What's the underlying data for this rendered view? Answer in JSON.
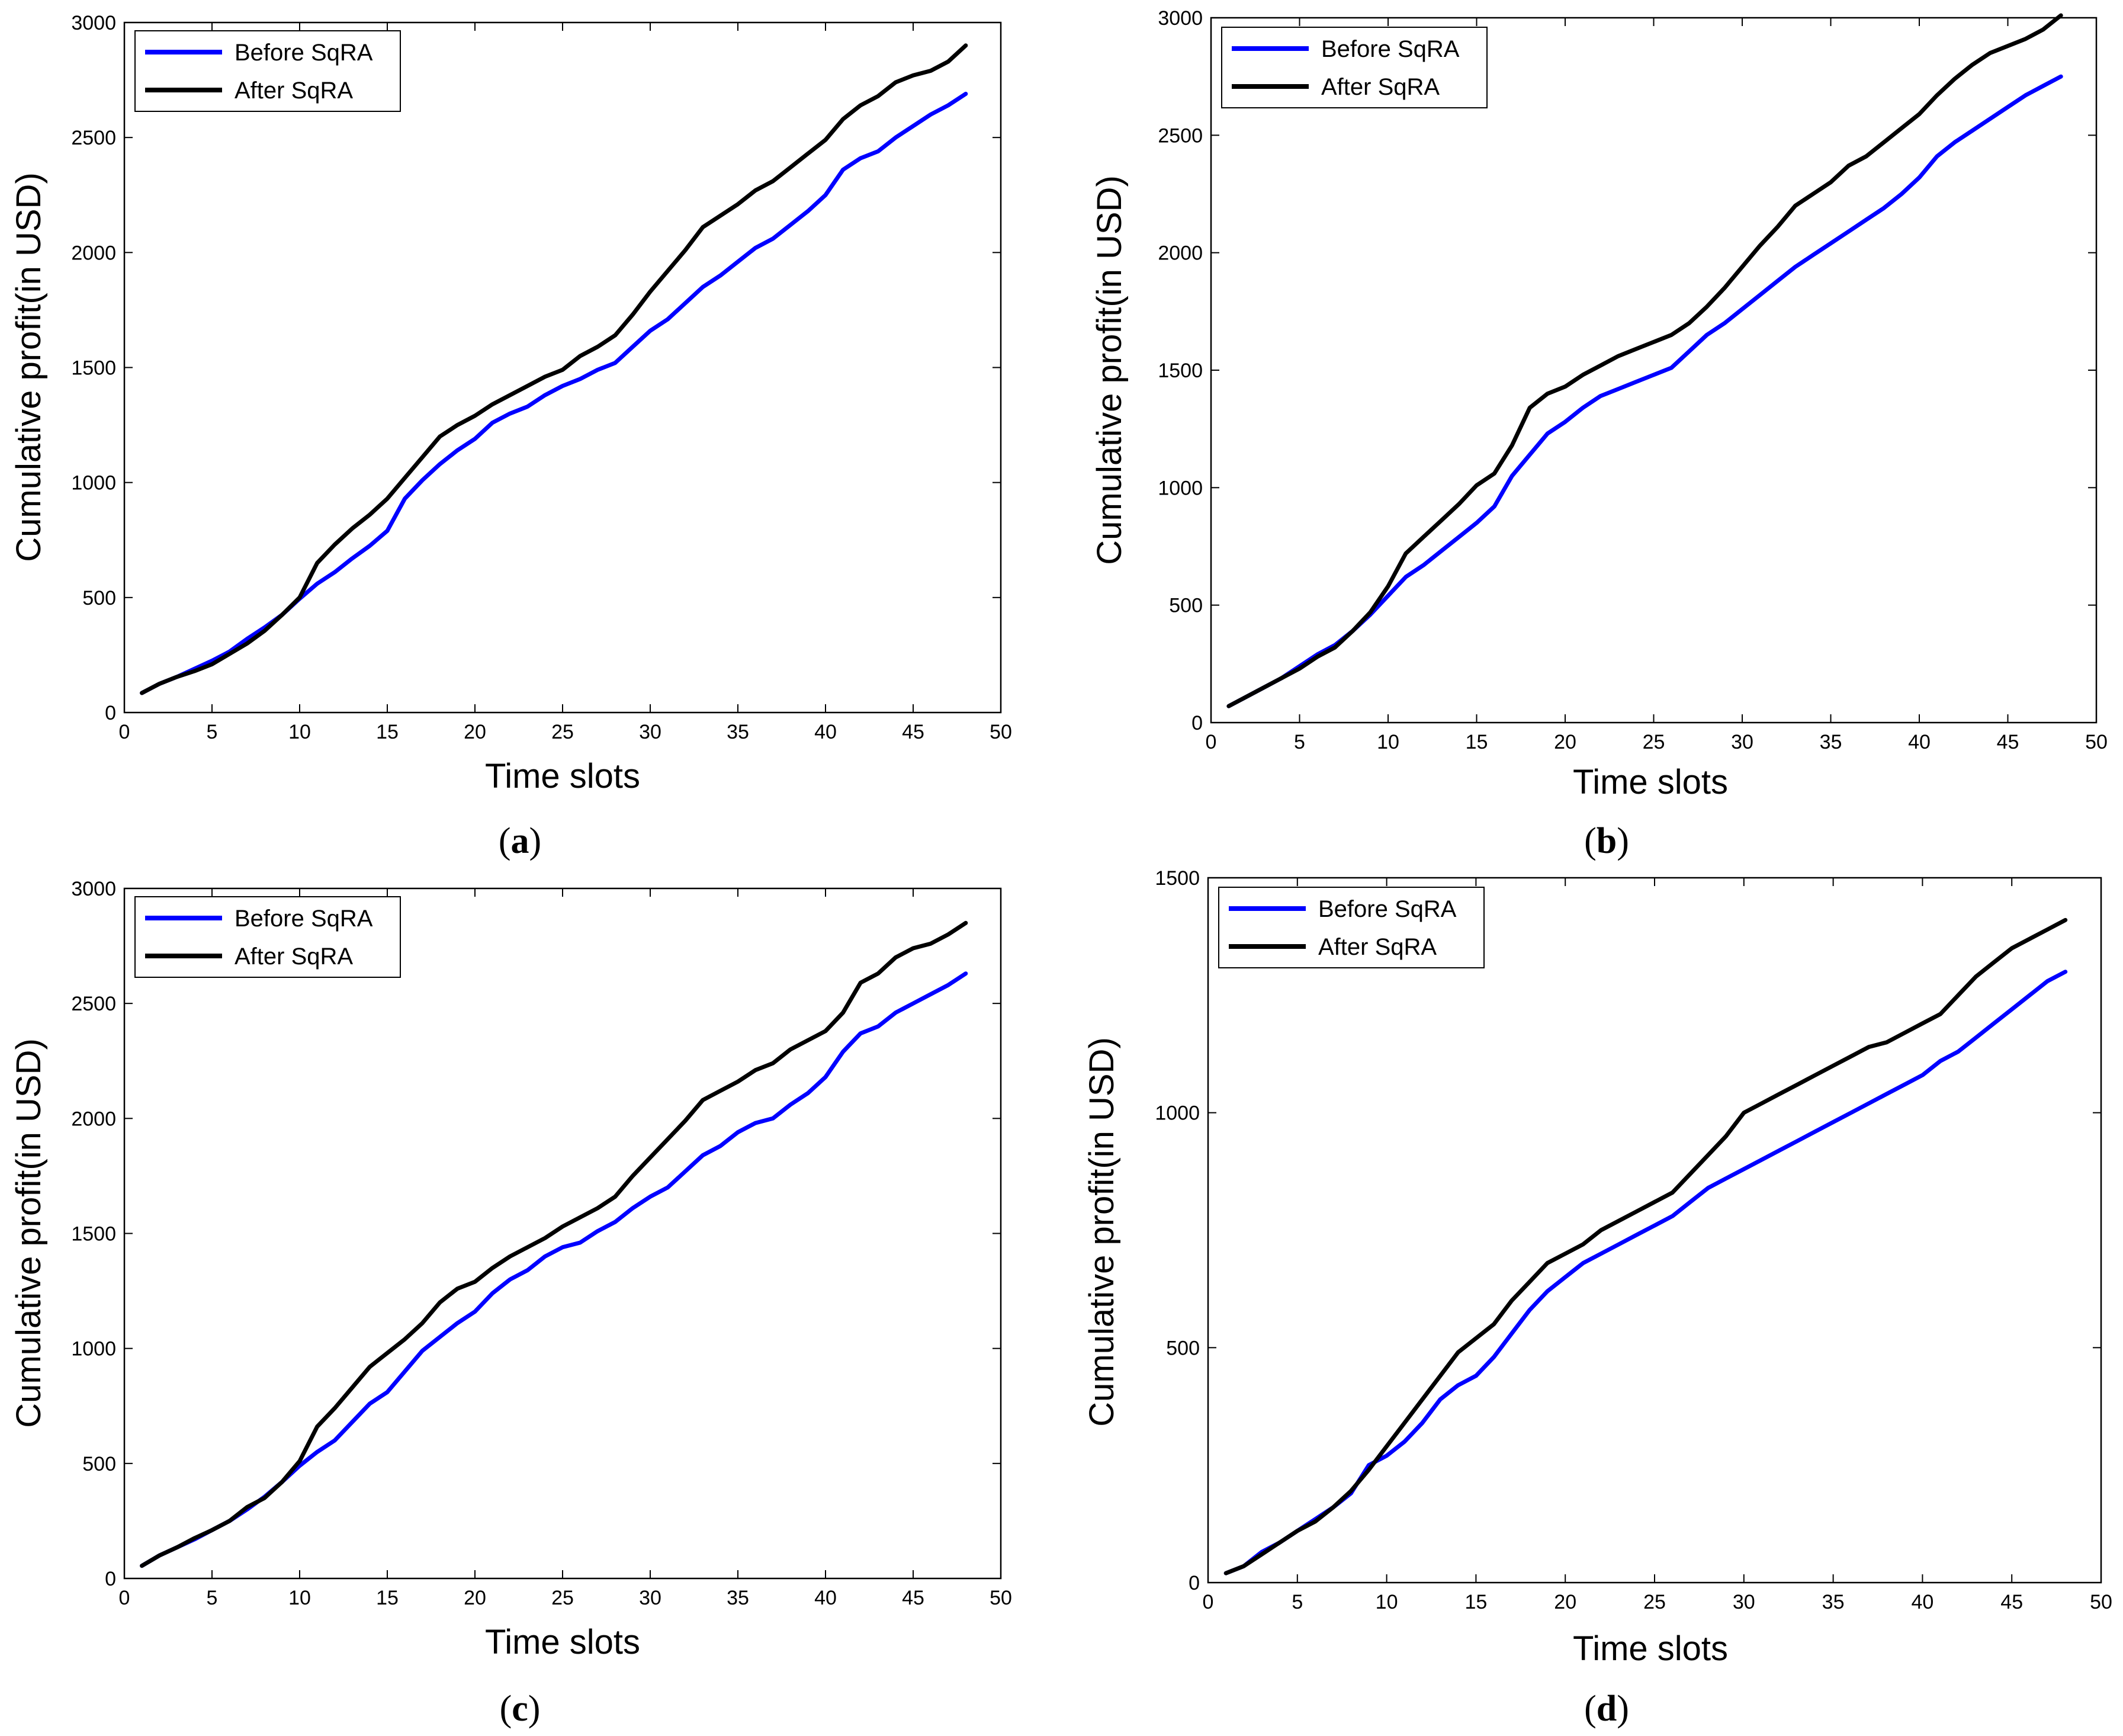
{
  "chart_data": [
    {
      "type": "line",
      "panel": "a",
      "caption_prefix": "(",
      "caption_letter": "a",
      "caption_suffix": ")",
      "xlabel": "Time slots",
      "ylabel": "Cumulative profit(in USD)",
      "xlim": [
        0,
        50
      ],
      "ylim": [
        0,
        3000
      ],
      "xticks": [
        0,
        5,
        10,
        15,
        20,
        25,
        30,
        35,
        40,
        45,
        50
      ],
      "yticks": [
        0,
        500,
        1000,
        1500,
        2000,
        2500,
        3000
      ],
      "legend_position": "top-left",
      "series": [
        {
          "name": "Before SqRA",
          "color": "#0000ff",
          "x": [
            1,
            2,
            3,
            4,
            5,
            6,
            7,
            8,
            9,
            10,
            11,
            12,
            13,
            14,
            15,
            16,
            17,
            18,
            19,
            20,
            21,
            22,
            23,
            24,
            25,
            26,
            27,
            28,
            29,
            30,
            31,
            32,
            33,
            34,
            35,
            36,
            37,
            38,
            39,
            40,
            41,
            42,
            43,
            44,
            45,
            46,
            47,
            48
          ],
          "y": [
            85,
            125,
            155,
            190,
            225,
            265,
            320,
            370,
            425,
            495,
            560,
            610,
            670,
            725,
            790,
            930,
            1010,
            1080,
            1140,
            1190,
            1260,
            1300,
            1330,
            1380,
            1420,
            1450,
            1490,
            1520,
            1590,
            1660,
            1710,
            1780,
            1850,
            1900,
            1960,
            2020,
            2060,
            2120,
            2180,
            2250,
            2360,
            2410,
            2440,
            2500,
            2550,
            2600,
            2640,
            2690
          ]
        },
        {
          "name": "After SqRA",
          "color": "#000000",
          "x": [
            1,
            2,
            3,
            4,
            5,
            6,
            7,
            8,
            9,
            10,
            11,
            12,
            13,
            14,
            15,
            16,
            17,
            18,
            19,
            20,
            21,
            22,
            23,
            24,
            25,
            26,
            27,
            28,
            29,
            30,
            31,
            32,
            33,
            34,
            35,
            36,
            37,
            38,
            39,
            40,
            41,
            42,
            43,
            44,
            45,
            46,
            47,
            48
          ],
          "y": [
            85,
            125,
            155,
            180,
            210,
            255,
            300,
            355,
            425,
            500,
            650,
            730,
            800,
            860,
            930,
            1020,
            1110,
            1200,
            1250,
            1290,
            1340,
            1380,
            1420,
            1460,
            1490,
            1550,
            1590,
            1640,
            1730,
            1830,
            1920,
            2010,
            2110,
            2160,
            2210,
            2270,
            2310,
            2370,
            2430,
            2490,
            2580,
            2640,
            2680,
            2740,
            2770,
            2790,
            2830,
            2900
          ]
        }
      ]
    },
    {
      "type": "line",
      "panel": "b",
      "caption_prefix": "(",
      "caption_letter": "b",
      "caption_suffix": ")",
      "xlabel": "Time slots",
      "ylabel": "Cumulative profit(in USD)",
      "xlim": [
        0,
        50
      ],
      "ylim": [
        0,
        3000
      ],
      "xticks": [
        0,
        5,
        10,
        15,
        20,
        25,
        30,
        35,
        40,
        45,
        50
      ],
      "yticks": [
        0,
        500,
        1000,
        1500,
        2000,
        2500,
        3000
      ],
      "legend_position": "top-left",
      "series": [
        {
          "name": "Before SqRA",
          "color": "#0000ff",
          "x": [
            1,
            2,
            3,
            4,
            5,
            6,
            7,
            8,
            9,
            10,
            11,
            12,
            13,
            14,
            15,
            16,
            17,
            18,
            19,
            20,
            21,
            22,
            23,
            24,
            25,
            26,
            27,
            28,
            29,
            30,
            31,
            32,
            33,
            34,
            35,
            36,
            37,
            38,
            39,
            40,
            41,
            42,
            43,
            44,
            45,
            46,
            47,
            48
          ],
          "y": [
            70,
            110,
            150,
            190,
            240,
            290,
            330,
            390,
            460,
            540,
            620,
            670,
            730,
            790,
            850,
            920,
            1050,
            1140,
            1230,
            1280,
            1340,
            1390,
            1420,
            1450,
            1480,
            1510,
            1580,
            1650,
            1700,
            1760,
            1820,
            1880,
            1940,
            1990,
            2040,
            2090,
            2140,
            2190,
            2250,
            2320,
            2410,
            2470,
            2520,
            2570,
            2620,
            2670,
            2710,
            2750
          ]
        },
        {
          "name": "After SqRA",
          "color": "#000000",
          "x": [
            1,
            2,
            3,
            4,
            5,
            6,
            7,
            8,
            9,
            10,
            11,
            12,
            13,
            14,
            15,
            16,
            17,
            18,
            19,
            20,
            21,
            22,
            23,
            24,
            25,
            26,
            27,
            28,
            29,
            30,
            31,
            32,
            33,
            34,
            35,
            36,
            37,
            38,
            39,
            40,
            41,
            42,
            43,
            44,
            45,
            46,
            47,
            48
          ],
          "y": [
            70,
            110,
            150,
            190,
            230,
            280,
            320,
            390,
            470,
            580,
            720,
            790,
            860,
            930,
            1010,
            1060,
            1180,
            1340,
            1400,
            1430,
            1480,
            1520,
            1560,
            1590,
            1620,
            1650,
            1700,
            1770,
            1850,
            1940,
            2030,
            2110,
            2200,
            2250,
            2300,
            2370,
            2410,
            2470,
            2530,
            2590,
            2670,
            2740,
            2800,
            2850,
            2880,
            2910,
            2950,
            3010
          ]
        }
      ]
    },
    {
      "type": "line",
      "panel": "c",
      "caption_prefix": "(",
      "caption_letter": "c",
      "caption_suffix": ")",
      "xlabel": "Time slots",
      "ylabel": "Cumulative profit(in USD)",
      "xlim": [
        0,
        50
      ],
      "ylim": [
        0,
        3000
      ],
      "xticks": [
        0,
        5,
        10,
        15,
        20,
        25,
        30,
        35,
        40,
        45,
        50
      ],
      "yticks": [
        0,
        500,
        1000,
        1500,
        2000,
        2500,
        3000
      ],
      "legend_position": "top-left",
      "series": [
        {
          "name": "Before SqRA",
          "color": "#0000ff",
          "x": [
            1,
            2,
            3,
            4,
            5,
            6,
            7,
            8,
            9,
            10,
            11,
            12,
            13,
            14,
            15,
            16,
            17,
            18,
            19,
            20,
            21,
            22,
            23,
            24,
            25,
            26,
            27,
            28,
            29,
            30,
            31,
            32,
            33,
            34,
            35,
            36,
            37,
            38,
            39,
            40,
            41,
            42,
            43,
            44,
            45,
            46,
            47,
            48
          ],
          "y": [
            55,
            100,
            135,
            170,
            210,
            250,
            300,
            355,
            420,
            490,
            550,
            600,
            680,
            760,
            810,
            900,
            990,
            1050,
            1110,
            1160,
            1240,
            1300,
            1340,
            1400,
            1440,
            1460,
            1510,
            1550,
            1610,
            1660,
            1700,
            1770,
            1840,
            1880,
            1940,
            1980,
            2000,
            2060,
            2110,
            2180,
            2290,
            2370,
            2400,
            2460,
            2500,
            2540,
            2580,
            2630
          ]
        },
        {
          "name": "After SqRA",
          "color": "#000000",
          "x": [
            1,
            2,
            3,
            4,
            5,
            6,
            7,
            8,
            9,
            10,
            11,
            12,
            13,
            14,
            15,
            16,
            17,
            18,
            19,
            20,
            21,
            22,
            23,
            24,
            25,
            26,
            27,
            28,
            29,
            30,
            31,
            32,
            33,
            34,
            35,
            36,
            37,
            38,
            39,
            40,
            41,
            42,
            43,
            44,
            45,
            46,
            47,
            48
          ],
          "y": [
            55,
            100,
            135,
            175,
            210,
            250,
            310,
            350,
            420,
            510,
            660,
            740,
            830,
            920,
            980,
            1040,
            1110,
            1200,
            1260,
            1290,
            1350,
            1400,
            1440,
            1480,
            1530,
            1570,
            1610,
            1660,
            1750,
            1830,
            1910,
            1990,
            2080,
            2120,
            2160,
            2210,
            2240,
            2300,
            2340,
            2380,
            2460,
            2590,
            2630,
            2700,
            2740,
            2760,
            2800,
            2850
          ]
        }
      ]
    },
    {
      "type": "line",
      "panel": "d",
      "caption_prefix": "(",
      "caption_letter": "d",
      "caption_suffix": ")",
      "xlabel": "Time slots",
      "ylabel": "Cumulative profit(in USD)",
      "xlim": [
        0,
        50
      ],
      "ylim": [
        0,
        1500
      ],
      "xticks": [
        0,
        5,
        10,
        15,
        20,
        25,
        30,
        35,
        40,
        45,
        50
      ],
      "yticks": [
        0,
        500,
        1000,
        1500
      ],
      "legend_position": "top-left",
      "series": [
        {
          "name": "Before SqRA",
          "color": "#0000ff",
          "x": [
            1,
            2,
            3,
            4,
            5,
            6,
            7,
            8,
            9,
            10,
            11,
            12,
            13,
            14,
            15,
            16,
            17,
            18,
            19,
            20,
            21,
            22,
            23,
            24,
            25,
            26,
            27,
            28,
            29,
            30,
            31,
            32,
            33,
            34,
            35,
            36,
            37,
            38,
            39,
            40,
            41,
            42,
            43,
            44,
            45,
            46,
            47,
            48
          ],
          "y": [
            20,
            35,
            65,
            85,
            110,
            135,
            160,
            190,
            250,
            270,
            300,
            340,
            390,
            420,
            440,
            480,
            530,
            580,
            620,
            650,
            680,
            700,
            720,
            740,
            760,
            780,
            810,
            840,
            860,
            880,
            900,
            920,
            940,
            960,
            980,
            1000,
            1020,
            1040,
            1060,
            1080,
            1110,
            1130,
            1160,
            1190,
            1220,
            1250,
            1280,
            1300
          ]
        },
        {
          "name": "After SqRA",
          "color": "#000000",
          "x": [
            1,
            2,
            3,
            4,
            5,
            6,
            7,
            8,
            9,
            10,
            11,
            12,
            13,
            14,
            15,
            16,
            17,
            18,
            19,
            20,
            21,
            22,
            23,
            24,
            25,
            26,
            27,
            28,
            29,
            30,
            31,
            32,
            33,
            34,
            35,
            36,
            37,
            38,
            39,
            40,
            41,
            42,
            43,
            44,
            45,
            46,
            47,
            48
          ],
          "y": [
            20,
            35,
            60,
            85,
            110,
            130,
            160,
            195,
            240,
            290,
            340,
            390,
            440,
            490,
            520,
            550,
            600,
            640,
            680,
            700,
            720,
            750,
            770,
            790,
            810,
            830,
            870,
            910,
            950,
            1000,
            1020,
            1040,
            1060,
            1080,
            1100,
            1120,
            1140,
            1150,
            1170,
            1190,
            1210,
            1250,
            1290,
            1320,
            1350,
            1370,
            1390,
            1410
          ]
        }
      ]
    }
  ]
}
